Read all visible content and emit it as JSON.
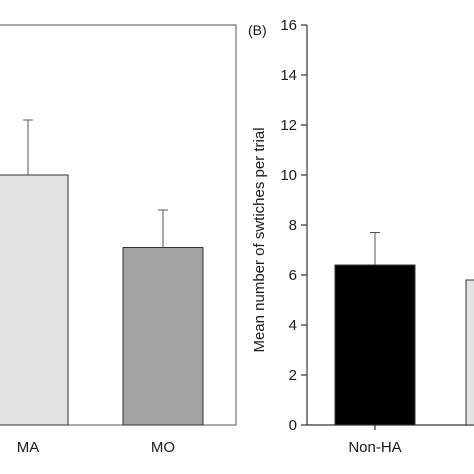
{
  "chart_data": [
    {
      "type": "bar",
      "panel_label": "",
      "categories": [
        "MA",
        "MO"
      ],
      "values": [
        10.0,
        7.1
      ],
      "errors": [
        2.2,
        1.5
      ],
      "colors": [
        "#e3e3e3",
        "#a3a3a3"
      ],
      "ylim": [
        0,
        16
      ],
      "ylabel": "",
      "xlabel": ""
    },
    {
      "type": "bar",
      "panel_label": "(B)",
      "categories": [
        "Non-HA",
        ""
      ],
      "values": [
        6.4,
        5.8
      ],
      "errors": [
        1.3,
        0
      ],
      "colors": [
        "#000000",
        "#e3e3e3"
      ],
      "ylim": [
        0,
        16
      ],
      "yticks": [
        "0",
        "2",
        "4",
        "6",
        "8",
        "10",
        "12",
        "14",
        "16"
      ],
      "ylabel": "Mean number of swtiches per trial",
      "xlabel": ""
    }
  ]
}
